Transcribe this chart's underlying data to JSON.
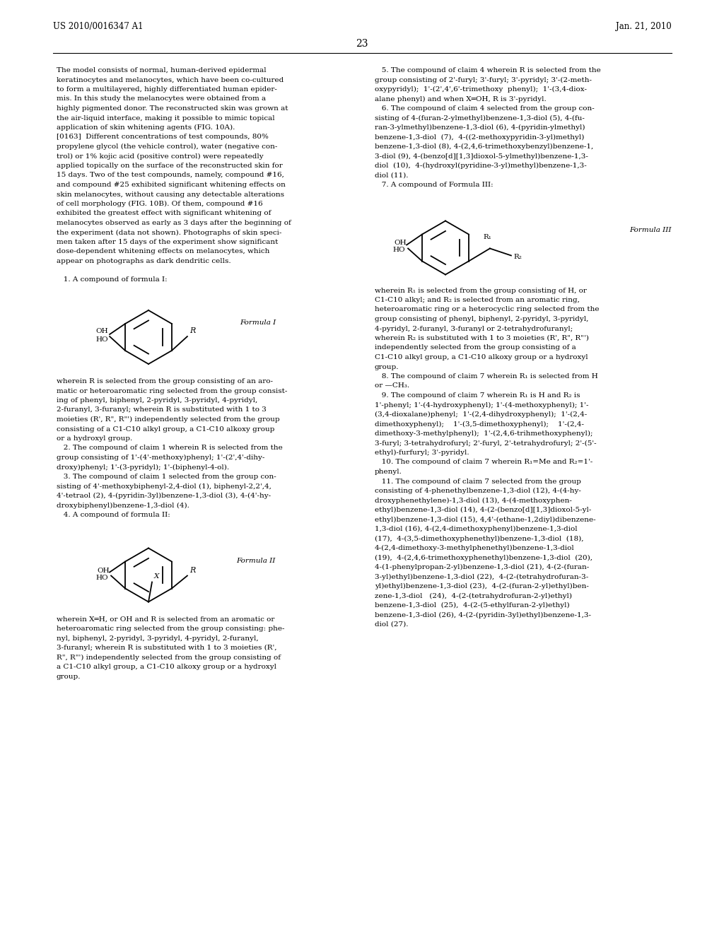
{
  "page_number": "23",
  "patent_number": "US 2010/0016347 A1",
  "date": "Jan. 21, 2010",
  "background_color": "#ffffff",
  "text_color": "#000000",
  "left_col_body": [
    "The model consists of normal, human-derived epidermal",
    "keratinocytes and melanocytes, which have been co-cultured",
    "to form a multilayered, highly differentiated human epider-",
    "mis. In this study the melanocytes were obtained from a",
    "highly pigmented donor. The reconstructed skin was grown at",
    "the air-liquid interface, making it possible to mimic topical",
    "application of skin whitening agents (FIG. 10A).",
    "[0163]  Different concentrations of test compounds, 80%",
    "propylene glycol (the vehicle control), water (negative con-",
    "trol) or 1% kojic acid (positive control) were repeatedly",
    "applied topically on the surface of the reconstructed skin for",
    "15 days. Two of the test compounds, namely, compound #16,",
    "and compound #25 exhibited significant whitening effects on",
    "skin melanocytes, without causing any detectable alterations",
    "of cell morphology (FIG. 10B). Of them, compound #16",
    "exhibited the greatest effect with significant whitening of",
    "melanocytes observed as early as 3 days after the beginning of",
    "the experiment (data not shown). Photographs of skin speci-",
    "men taken after 15 days of the experiment show significant",
    "dose-dependent whitening effects on melanocytes, which",
    "appear on photographs as dark dendritic cells."
  ],
  "claim1_label": "   1. A compound of formula I:",
  "formula_I_label": "Formula I",
  "left_col_claims": [
    "wherein R is selected from the group consisting of an aro-",
    "matic or heteroaromatic ring selected from the group consist-",
    "ing of phenyl, biphenyl, 2-pyridyl, 3-pyridyl, 4-pyridyl,",
    "2-furanyl, 3-furanyl; wherein R is substituted with 1 to 3",
    "moieties (R', R\", R\"') independently selected from the group",
    "consisting of a C1-C10 alkyl group, a C1-C10 alkoxy group",
    "or a hydroxyl group.",
    "   2. The compound of claim 1 wherein R is selected from the",
    "group consisting of 1'-(4'-methoxy)phenyl; 1'-(2',4'-dihy-",
    "droxy)phenyl; 1'-(3-pyridyl); 1'-(biphenyl-4-ol).",
    "   3. The compound of claim 1 selected from the group con-",
    "sisting of 4'-methoxybiphenyl-2,4-diol (1), biphenyl-2,2',4,",
    "4'-tetraol (2), 4-(pyridin-3yl)benzene-1,3-diol (3), 4-(4'-hy-",
    "droxybiphenyl)benzene-1,3-diol (4).",
    "   4. A compound of formula II:"
  ],
  "formula_II_label": "Formula II",
  "left_col_after_formula2": [
    "wherein X═H, or OH and R is selected from an aromatic or",
    "heteroaromatic ring selected from the group consisting: phe-",
    "nyl, biphenyl, 2-pyridyl, 3-pyridyl, 4-pyridyl, 2-furanyl,",
    "3-furanyl; wherein R is substituted with 1 to 3 moieties (R',",
    "R\", R\"') independently selected from the group consisting of",
    "a C1-C10 alkyl group, a C1-C10 alkoxy group or a hydroxyl",
    "group."
  ],
  "right_col_top": [
    "   5. The compound of claim 4 wherein R is selected from the",
    "group consisting of 2'-furyl; 3'-furyl; 3'-pyridyl; 3'-(2-meth-",
    "oxypyridyl);  1'-(2',4',6'-trimethoxy  phenyl);  1'-(3,4-diox-",
    "alane phenyl) and when X═OH, R is 3'-pyridyl.",
    "   6. The compound of claim 4 selected from the group con-",
    "sisting of 4-(furan-2-ylmethyl)benzene-1,3-diol (5), 4-(fu-",
    "ran-3-ylmethyl)benzene-1,3-diol (6), 4-(pyridin-ylmethyl)",
    "benzene-1,3-diol  (7),  4-((2-methoxypyridin-3-yl)methyl)",
    "benzene-1,3-diol (8), 4-(2,4,6-trimethoxybenzyl)benzene-1,",
    "3-diol (9), 4-(benzo[d][1,3]dioxol-5-ylmethyl)benzene-1,3-",
    "diol  (10),  4-(hydroxyl(pyridine-3-yl)methyl)benzene-1,3-",
    "diol (11).",
    "   7. A compound of Formula III:"
  ],
  "formula_III_label": "Formula III",
  "right_col_after_formula3": [
    "wherein R₁ is selected from the group consisting of H, or",
    "C1-C10 alkyl; and R₂ is selected from an aromatic ring,",
    "heteroaromatic ring or a heterocyclic ring selected from the",
    "group consisting of phenyl, biphenyl, 2-pyridyl, 3-pyridyl,",
    "4-pyridyl, 2-furanyl, 3-furanyl or 2-tetrahydrofuranyl;",
    "wherein R₂ is substituted with 1 to 3 moieties (R', R\", R\"')",
    "independently selected from the group consisting of a",
    "C1-C10 alkyl group, a C1-C10 alkoxy group or a hydroxyl",
    "group.",
    "   8. The compound of claim 7 wherein R₁ is selected from H",
    "or —CH₃.",
    "   9. The compound of claim 7 wherein R₁ is H and R₂ is",
    "1'-phenyl; 1'-(4-hydroxyphenyl); 1'-(4-methoxyphenyl); 1'-",
    "(3,4-dioxalane)phenyl;  1'-(2,4-dihydroxyphenyl);  1'-(2,4-",
    "dimethoxyphenyl);    1'-(3,5-dimethoxyphenyl);    1'-(2,4-",
    "dimethoxy-3-methylphenyl);  1'-(2,4,6-trihmethoxyphenyl);",
    "3-furyl; 3-tetrahydrofuryl; 2'-furyl, 2'-tetrahydrofuryl; 2'-(5'-",
    "ethyl)-furfuryl; 3'-pyridyl.",
    "   10. The compound of claim 7 wherein R₁=Me and R₂=1'-",
    "phenyl.",
    "   11. The compound of claim 7 selected from the group",
    "consisting of 4-phenethylbenzene-1,3-diol (12), 4-(4-hy-",
    "droxyphenethylene)-1,3-diol (13), 4-(4-methoxyphen-",
    "ethyl)benzene-1,3-diol (14), 4-(2-(benzo[d][1,3]dioxol-5-yl-",
    "ethyl)benzene-1,3-diol (15), 4,4'-(ethane-1,2diyl)dibenzene-",
    "1,3-diol (16), 4-(2,4-dimethoxyphenyl)benzene-1,3-diol",
    "(17),  4-(3,5-dimethoxyphenethyl)benzene-1,3-diol  (18),",
    "4-(2,4-dimethoxy-3-methylphenethyl)benzene-1,3-diol",
    "(19),  4-(2,4,6-trimethoxyphenethyl)benzene-1,3-diol  (20),",
    "4-(1-phenylpropan-2-yl)benzene-1,3-diol (21), 4-(2-(furan-",
    "3-yl)ethyl)benzene-1,3-diol (22),  4-(2-(tetrahydrofuran-3-",
    "yl)ethyl)benzene-1,3-diol (23),  4-(2-(furan-2-yl)ethyl)ben-",
    "zene-1,3-diol   (24),  4-(2-(tetrahydrofuran-2-yl)ethyl)",
    "benzene-1,3-diol  (25),  4-(2-(5-ethylfuran-2-yl)ethyl)",
    "benzene-1,3-diol (26), 4-(2-(pyridin-3yl)ethyl)benzene-1,3-",
    "diol (27)."
  ]
}
